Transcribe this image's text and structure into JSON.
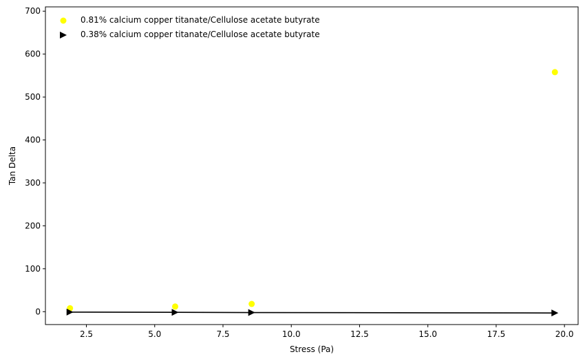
{
  "chart_data": {
    "type": "scatter",
    "title": "",
    "xlabel": "Stress (Pa)",
    "ylabel": "Tan Delta",
    "xlim": [
      1.0,
      20.5
    ],
    "ylim": [
      -30,
      710
    ],
    "xticks": [
      2.5,
      5.0,
      7.5,
      10.0,
      12.5,
      15.0,
      17.5,
      20.0
    ],
    "xtick_labels": [
      "2.5",
      "5.0",
      "7.5",
      "10.0",
      "12.5",
      "15.0",
      "17.5",
      "20.0"
    ],
    "yticks": [
      0,
      100,
      200,
      300,
      400,
      500,
      600,
      700
    ],
    "ytick_labels": [
      "0",
      "100",
      "200",
      "300",
      "400",
      "500",
      "600",
      "700"
    ],
    "grid": false,
    "legend_position": "top-left",
    "series": [
      {
        "name": "0.81% calcium copper titanate/Cellulose acetate butyrate",
        "marker": "circle",
        "color": "#ffff00",
        "line": false,
        "x": [
          1.9,
          5.75,
          8.55,
          19.65
        ],
        "y": [
          8,
          12,
          18,
          558
        ]
      },
      {
        "name": "0.38% calcium copper titanate/Cellulose acetate butyrate",
        "marker": "triangle-right",
        "color": "#000000",
        "line": true,
        "x": [
          1.9,
          5.75,
          8.55,
          19.65
        ],
        "y": [
          -1,
          -1.5,
          -2,
          -3
        ]
      }
    ]
  }
}
